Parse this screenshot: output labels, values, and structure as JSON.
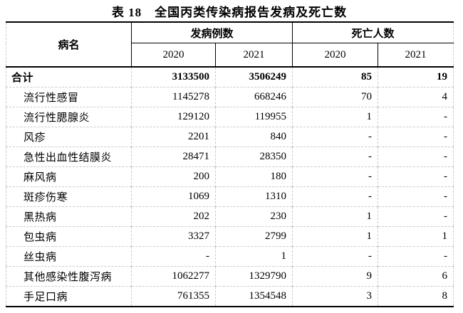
{
  "title": "表 18　全国丙类传染病报告发病及死亡数",
  "table": {
    "headers": {
      "disease": "病名",
      "cases_group": "发病例数",
      "deaths_group": "死亡人数",
      "years": [
        "2020",
        "2021"
      ]
    },
    "rows": [
      {
        "name": "合计",
        "bold": true,
        "cases_2020": "3133500",
        "cases_2021": "3506249",
        "deaths_2020": "85",
        "deaths_2021": "19"
      },
      {
        "name": "流行性感冒",
        "bold": false,
        "cases_2020": "1145278",
        "cases_2021": "668246",
        "deaths_2020": "70",
        "deaths_2021": "4"
      },
      {
        "name": "流行性腮腺炎",
        "bold": false,
        "cases_2020": "129120",
        "cases_2021": "119955",
        "deaths_2020": "1",
        "deaths_2021": "-"
      },
      {
        "name": "风疹",
        "bold": false,
        "cases_2020": "2201",
        "cases_2021": "840",
        "deaths_2020": "-",
        "deaths_2021": "-"
      },
      {
        "name": "急性出血性结膜炎",
        "bold": false,
        "cases_2020": "28471",
        "cases_2021": "28350",
        "deaths_2020": "-",
        "deaths_2021": "-"
      },
      {
        "name": "麻风病",
        "bold": false,
        "cases_2020": "200",
        "cases_2021": "180",
        "deaths_2020": "-",
        "deaths_2021": "-"
      },
      {
        "name": "斑疹伤寒",
        "bold": false,
        "cases_2020": "1069",
        "cases_2021": "1310",
        "deaths_2020": "-",
        "deaths_2021": "-"
      },
      {
        "name": "黑热病",
        "bold": false,
        "cases_2020": "202",
        "cases_2021": "230",
        "deaths_2020": "1",
        "deaths_2021": "-"
      },
      {
        "name": "包虫病",
        "bold": false,
        "cases_2020": "3327",
        "cases_2021": "2799",
        "deaths_2020": "1",
        "deaths_2021": "1"
      },
      {
        "name": "丝虫病",
        "bold": false,
        "cases_2020": "-",
        "cases_2021": "1",
        "deaths_2020": "-",
        "deaths_2021": "-"
      },
      {
        "name": "其他感染性腹泻病",
        "bold": false,
        "cases_2020": "1062277",
        "cases_2021": "1329790",
        "deaths_2020": "9",
        "deaths_2021": "6"
      },
      {
        "name": "手足口病",
        "bold": false,
        "cases_2020": "761355",
        "cases_2021": "1354548",
        "deaths_2020": "3",
        "deaths_2021": "8"
      }
    ]
  },
  "colors": {
    "text": "#000000",
    "heavy_rule": "#000000",
    "grid_dashed": "#cbcbcb",
    "background": "#ffffff"
  }
}
